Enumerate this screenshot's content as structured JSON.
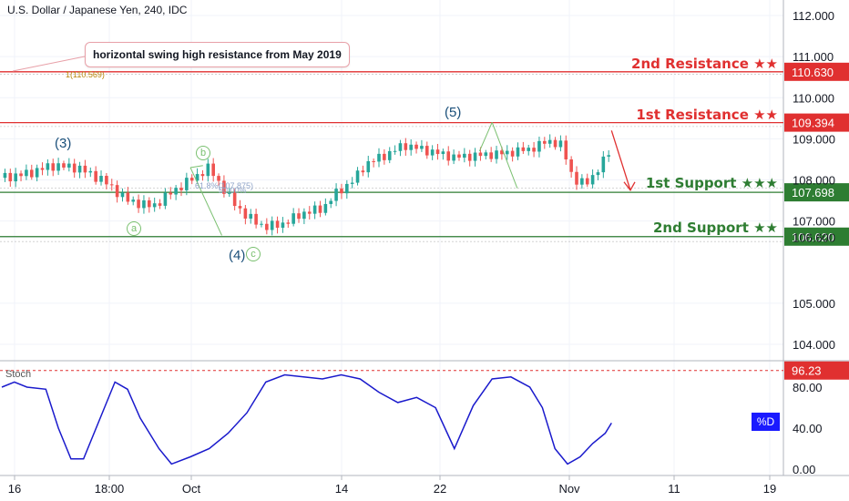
{
  "header": {
    "symbol_title": "U.S. Dollar / Japanese Yen, 240, IDC"
  },
  "annotation": {
    "note": "horizontal swing high resistance from May 2019",
    "fib_target": "1(110.569)",
    "fib_retrace": "61.8%(107.875)",
    "fib_half": "50.00%"
  },
  "levels": [
    {
      "name": "2nd Resistance ★★",
      "value": 110.63,
      "tag": "110.630",
      "kind": "resistance",
      "color": "#e03030"
    },
    {
      "name": "1st Resistance ★★",
      "value": 109.394,
      "tag": "109.394",
      "kind": "resistance",
      "color": "#e03030"
    },
    {
      "name": "1st Support ★★★",
      "value": 107.698,
      "tag": "107.698",
      "kind": "support",
      "color": "#2e7d32"
    },
    {
      "name": "2nd Support ★★",
      "value": 106.62,
      "tag": "106.620",
      "kind": "support",
      "color": "#2e7d32"
    }
  ],
  "waves": {
    "w3": "(3)",
    "w4": "(4)",
    "w5": "(5)",
    "a": "a",
    "b": "b",
    "c": "c"
  },
  "stoch": {
    "title": "Stoch",
    "level_tag": "96.23",
    "badge": "%D"
  },
  "colors": {
    "bull": "#26a69a",
    "bear": "#ef5350",
    "stoch_line": "#1a1acc",
    "resistance": "#e03030",
    "support": "#2e7d32"
  },
  "chart_data": {
    "type": "candlestick",
    "title": "U.S. Dollar / Japanese Yen, 240, IDC",
    "price_axis": {
      "ticks": [
        "112.000",
        "111.000",
        "110.000",
        "109.000",
        "108.000",
        "107.000",
        "106.600",
        "105.000",
        "104.000"
      ],
      "ylim": [
        103.5,
        112.2
      ]
    },
    "stoch_axis": {
      "ticks": [
        "80.00",
        "40.00",
        "0.00"
      ],
      "ylim": [
        0,
        100
      ]
    },
    "x_ticks": [
      "16",
      "18:00",
      "Oct",
      "14",
      "22",
      "Nov",
      "11",
      "19"
    ],
    "price_path": [
      [
        0,
        108.05
      ],
      [
        4,
        108.15
      ],
      [
        8,
        108.35
      ],
      [
        12,
        108.3
      ],
      [
        16,
        108.0
      ],
      [
        20,
        107.5
      ],
      [
        24,
        107.35
      ],
      [
        27,
        107.7
      ],
      [
        30,
        108.0
      ],
      [
        33,
        108.3
      ],
      [
        36,
        107.6
      ],
      [
        39,
        107.1
      ],
      [
        42,
        106.85
      ],
      [
        45,
        106.95
      ],
      [
        48,
        107.2
      ],
      [
        51,
        107.3
      ],
      [
        53,
        107.65
      ],
      [
        56,
        108.0
      ],
      [
        58,
        108.4
      ],
      [
        61,
        108.6
      ],
      [
        64,
        108.85
      ],
      [
        68,
        108.7
      ],
      [
        72,
        108.55
      ],
      [
        76,
        108.6
      ],
      [
        80,
        108.65
      ],
      [
        84,
        108.75
      ],
      [
        87,
        108.95
      ],
      [
        89,
        108.85
      ],
      [
        91,
        108.0
      ],
      [
        93,
        107.9
      ],
      [
        95,
        108.3
      ],
      [
        97,
        108.75
      ]
    ],
    "stochastic": {
      "series": [
        {
          "name": "%D",
          "values": [
            [
              0,
              80
            ],
            [
              2,
              85
            ],
            [
              4,
              80
            ],
            [
              7,
              78
            ],
            [
              9,
              40
            ],
            [
              11,
              10
            ],
            [
              13,
              10
            ],
            [
              16,
              55
            ],
            [
              18,
              85
            ],
            [
              20,
              78
            ],
            [
              22,
              50
            ],
            [
              25,
              20
            ],
            [
              27,
              5
            ],
            [
              30,
              12
            ],
            [
              33,
              20
            ],
            [
              36,
              35
            ],
            [
              39,
              55
            ],
            [
              42,
              85
            ],
            [
              45,
              92
            ],
            [
              48,
              90
            ],
            [
              51,
              88
            ],
            [
              54,
              92
            ],
            [
              57,
              88
            ],
            [
              60,
              75
            ],
            [
              63,
              65
            ],
            [
              66,
              70
            ],
            [
              69,
              60
            ],
            [
              72,
              20
            ],
            [
              75,
              62
            ],
            [
              78,
              88
            ],
            [
              81,
              90
            ],
            [
              84,
              80
            ],
            [
              86,
              60
            ],
            [
              88,
              20
            ],
            [
              90,
              5
            ],
            [
              92,
              12
            ],
            [
              94,
              25
            ],
            [
              96,
              35
            ],
            [
              97,
              45
            ]
          ]
        }
      ]
    }
  }
}
